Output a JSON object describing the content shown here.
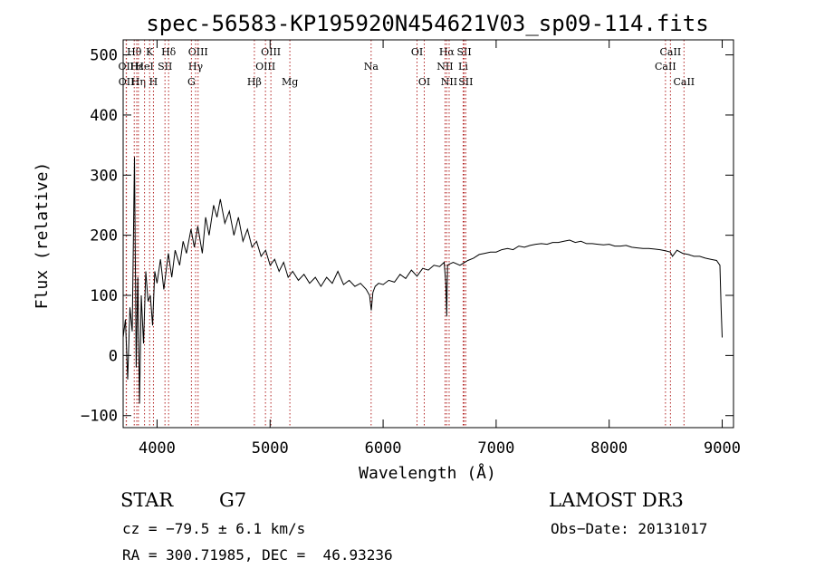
{
  "chart_data": {
    "type": "line",
    "title": "spec-56583-KP195920N454621V03_sp09-114.fits",
    "xlabel": "Wavelength (Å)",
    "ylabel": "Flux (relative)",
    "xlim": [
      3700,
      9100
    ],
    "ylim": [
      -120,
      525
    ],
    "xticks": [
      4000,
      5000,
      6000,
      7000,
      8000,
      9000
    ],
    "yticks": [
      -100,
      0,
      100,
      200,
      300,
      400,
      500
    ],
    "grid": false,
    "line_color": "#000000",
    "marker_color": "#b22222",
    "series": [
      {
        "name": "flux",
        "x": [
          3700,
          3720,
          3740,
          3760,
          3780,
          3800,
          3815,
          3830,
          3845,
          3860,
          3880,
          3900,
          3920,
          3940,
          3960,
          3980,
          4000,
          4030,
          4060,
          4100,
          4130,
          4160,
          4200,
          4230,
          4260,
          4300,
          4330,
          4360,
          4400,
          4430,
          4460,
          4500,
          4530,
          4560,
          4600,
          4640,
          4680,
          4720,
          4760,
          4800,
          4840,
          4880,
          4920,
          4960,
          5000,
          5040,
          5080,
          5120,
          5160,
          5200,
          5250,
          5300,
          5350,
          5400,
          5450,
          5500,
          5550,
          5600,
          5650,
          5700,
          5750,
          5800,
          5850,
          5880,
          5895,
          5910,
          5930,
          5960,
          6000,
          6050,
          6100,
          6150,
          6200,
          6250,
          6300,
          6350,
          6400,
          6450,
          6500,
          6540,
          6555,
          6563,
          6570,
          6585,
          6620,
          6680,
          6750,
          6800,
          6850,
          6900,
          6950,
          7000,
          7050,
          7100,
          7150,
          7200,
          7250,
          7300,
          7350,
          7400,
          7450,
          7500,
          7550,
          7600,
          7650,
          7700,
          7750,
          7800,
          7850,
          7900,
          7950,
          8000,
          8050,
          8100,
          8150,
          8200,
          8250,
          8300,
          8350,
          8400,
          8450,
          8500,
          8540,
          8560,
          8600,
          8650,
          8700,
          8750,
          8800,
          8850,
          8900,
          8950,
          8980,
          8990,
          9000
        ],
        "y": [
          30,
          60,
          -40,
          80,
          40,
          330,
          -20,
          130,
          -80,
          100,
          20,
          140,
          90,
          100,
          50,
          140,
          120,
          160,
          110,
          170,
          130,
          175,
          150,
          190,
          170,
          210,
          180,
          215,
          170,
          230,
          200,
          250,
          230,
          260,
          220,
          240,
          200,
          230,
          190,
          210,
          180,
          190,
          165,
          175,
          150,
          160,
          140,
          155,
          130,
          140,
          125,
          135,
          120,
          130,
          115,
          130,
          120,
          140,
          118,
          125,
          115,
          120,
          110,
          100,
          75,
          105,
          115,
          120,
          118,
          125,
          122,
          135,
          128,
          142,
          132,
          145,
          142,
          150,
          148,
          155,
          120,
          65,
          150,
          152,
          155,
          150,
          158,
          162,
          168,
          170,
          172,
          172,
          176,
          178,
          176,
          182,
          180,
          183,
          185,
          186,
          185,
          188,
          188,
          190,
          192,
          188,
          190,
          186,
          186,
          185,
          184,
          185,
          182,
          182,
          183,
          180,
          179,
          178,
          178,
          177,
          176,
          174,
          172,
          165,
          175,
          170,
          168,
          165,
          165,
          162,
          160,
          158,
          150,
          80,
          30
        ]
      }
    ],
    "line_markers": [
      {
        "name": "Hθ",
        "x": 3798,
        "row": 0
      },
      {
        "name": "OII",
        "x": 3727,
        "row": 1
      },
      {
        "name": "OII",
        "x": 3729,
        "row": 2
      },
      {
        "name": "Hε",
        "x": 3820,
        "row": 1
      },
      {
        "name": "Hη",
        "x": 3835,
        "row": 2
      },
      {
        "name": "K",
        "x": 3934,
        "row": 0
      },
      {
        "name": "HeI",
        "x": 3889,
        "row": 1
      },
      {
        "name": "H",
        "x": 3968,
        "row": 2
      },
      {
        "name": "SII",
        "x": 4070,
        "row": 1
      },
      {
        "name": "Hδ",
        "x": 4102,
        "row": 0
      },
      {
        "name": "OIII",
        "x": 4363,
        "row": 0
      },
      {
        "name": "Hγ",
        "x": 4341,
        "row": 1
      },
      {
        "name": "G",
        "x": 4304,
        "row": 2
      },
      {
        "name": "Hβ",
        "x": 4861,
        "row": 2
      },
      {
        "name": "OIII",
        "x": 5007,
        "row": 0
      },
      {
        "name": "OIII",
        "x": 4959,
        "row": 1
      },
      {
        "name": "Mg",
        "x": 5175,
        "row": 2
      },
      {
        "name": "Na",
        "x": 5894,
        "row": 1
      },
      {
        "name": "OI",
        "x": 6300,
        "row": 0
      },
      {
        "name": "OI",
        "x": 6364,
        "row": 2
      },
      {
        "name": "Hα",
        "x": 6563,
        "row": 0
      },
      {
        "name": "NII",
        "x": 6548,
        "row": 1
      },
      {
        "name": "NII",
        "x": 6584,
        "row": 2
      },
      {
        "name": "SII",
        "x": 6717,
        "row": 0
      },
      {
        "name": "Li",
        "x": 6708,
        "row": 1
      },
      {
        "name": "SII",
        "x": 6731,
        "row": 2
      },
      {
        "name": "CaII",
        "x": 8542,
        "row": 0
      },
      {
        "name": "CaII",
        "x": 8498,
        "row": 1
      },
      {
        "name": "CaII",
        "x": 8662,
        "row": 2
      }
    ]
  },
  "info": {
    "object_class": "STAR",
    "subclass": "G7",
    "survey": "LAMOST DR3",
    "cz": "cz = −79.5 ± 6.1 km/s",
    "obs_date": "Obs−Date: 20131017",
    "coords": "RA = 300.71985, DEC =  46.93236"
  }
}
